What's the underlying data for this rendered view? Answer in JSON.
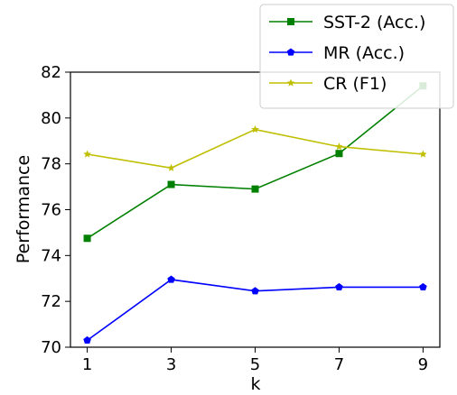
{
  "chart_data": {
    "type": "line",
    "title": "",
    "xlabel": "k",
    "ylabel": "Performance",
    "x": [
      1,
      3,
      5,
      7,
      9
    ],
    "xticks": [
      "1",
      "3",
      "5",
      "7",
      "9"
    ],
    "yticks": [
      "70",
      "72",
      "74",
      "76",
      "78",
      "80",
      "82"
    ],
    "xlim": [
      0.6,
      9.4
    ],
    "ylim": [
      70,
      82
    ],
    "grid": false,
    "legend_position": "top-right",
    "series": [
      {
        "name": "SST-2 (Acc.)",
        "values": [
          74.75,
          77.1,
          76.9,
          78.45,
          81.4
        ],
        "color": "#008000",
        "marker": "square"
      },
      {
        "name": "MR (Acc.)",
        "values": [
          70.3,
          72.95,
          72.45,
          72.62,
          72.62
        ],
        "color": "#0000ff",
        "marker": "pentagon"
      },
      {
        "name": "CR (F1)",
        "values": [
          78.42,
          77.82,
          79.5,
          78.75,
          78.42
        ],
        "color": "#bfbf00",
        "marker": "star"
      }
    ]
  }
}
